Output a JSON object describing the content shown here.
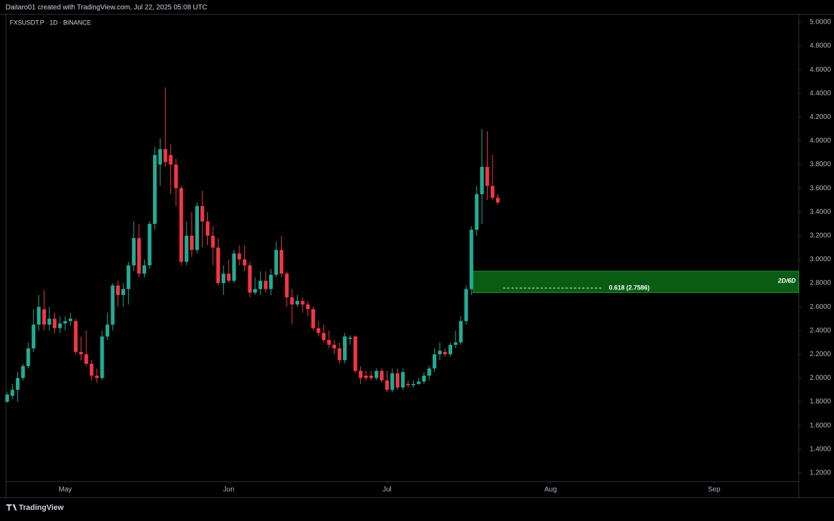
{
  "header": {
    "text": "Daitaro01 created with TradingView.com, Jul 22, 2025 05:08 UTC"
  },
  "footer": {
    "brand": "TradingView"
  },
  "chart_data": {
    "type": "candlestick",
    "title": "FXSUSDT.P · 1D · BINANCE",
    "up_color": "#22ab94",
    "down_color": "#f23645",
    "open": [
      1.8,
      1.85,
      1.9,
      2.0,
      2.1,
      2.25,
      2.45,
      2.58,
      2.45,
      2.5,
      2.42,
      2.46,
      2.48,
      2.48,
      2.22,
      2.2,
      2.12,
      2.02,
      2.0,
      2.35,
      2.45,
      2.78,
      2.7,
      2.75,
      2.95,
      3.18,
      2.88,
      2.95,
      3.3,
      3.8,
      3.93,
      3.88,
      3.8,
      3.6,
      2.98,
      3.2,
      3.08,
      3.45,
      3.32,
      3.2,
      3.1,
      2.8,
      2.88,
      2.82,
      3.05,
      3.0,
      2.95,
      2.72,
      2.75,
      2.82,
      2.75,
      2.87,
      3.08,
      2.88,
      2.68,
      2.62,
      2.65,
      2.62,
      2.58,
      2.42,
      2.38,
      2.32,
      2.28,
      2.25,
      2.15,
      2.33,
      2.35,
      2.06,
      2.02,
      2.02,
      2.0,
      2.06,
      1.98,
      1.9,
      2.04,
      1.92,
      1.95,
      1.94,
      1.95,
      1.97,
      2.02,
      2.08,
      2.2,
      2.22,
      2.2,
      2.28,
      2.3,
      2.48,
      2.75,
      3.25,
      3.55,
      3.78,
      3.62,
      3.52
    ],
    "high": [
      1.88,
      1.95,
      2.05,
      2.12,
      2.3,
      2.58,
      2.7,
      2.74,
      2.6,
      2.55,
      2.52,
      2.52,
      2.55,
      2.5,
      2.35,
      2.4,
      2.15,
      2.08,
      2.4,
      2.55,
      2.8,
      2.82,
      2.8,
      2.98,
      3.32,
      3.3,
      3.0,
      3.32,
      3.95,
      4.02,
      4.45,
      3.97,
      3.85,
      3.62,
      3.32,
      3.4,
      3.48,
      3.58,
      3.4,
      3.28,
      3.18,
      2.95,
      3.0,
      3.08,
      3.12,
      3.12,
      2.98,
      2.85,
      2.9,
      2.9,
      2.92,
      3.15,
      3.2,
      2.9,
      2.75,
      2.7,
      2.68,
      2.65,
      2.6,
      2.48,
      2.45,
      2.4,
      2.32,
      2.3,
      2.38,
      2.36,
      2.36,
      2.1,
      2.06,
      2.06,
      2.08,
      2.08,
      2.06,
      2.08,
      2.08,
      2.08,
      1.98,
      1.98,
      2.0,
      2.05,
      2.1,
      2.25,
      2.3,
      2.25,
      2.3,
      2.4,
      2.52,
      2.78,
      3.28,
      3.62,
      4.1,
      4.08,
      3.88,
      3.55
    ],
    "low": [
      1.79,
      1.82,
      1.8,
      1.98,
      2.08,
      2.22,
      2.4,
      2.4,
      2.4,
      2.38,
      2.38,
      2.4,
      2.44,
      2.2,
      2.15,
      2.1,
      1.98,
      1.96,
      1.98,
      2.32,
      2.4,
      2.6,
      2.6,
      2.62,
      2.9,
      2.85,
      2.85,
      2.92,
      3.25,
      3.62,
      3.78,
      3.55,
      3.45,
      2.95,
      2.95,
      3.02,
      3.05,
      3.1,
      3.12,
      2.95,
      2.78,
      2.7,
      2.8,
      2.8,
      2.95,
      2.9,
      2.68,
      2.7,
      2.7,
      2.72,
      2.7,
      2.85,
      2.85,
      2.6,
      2.45,
      2.6,
      2.55,
      2.52,
      2.4,
      2.35,
      2.3,
      2.25,
      2.2,
      2.12,
      2.12,
      2.28,
      2.04,
      1.95,
      1.98,
      1.98,
      1.98,
      1.96,
      1.88,
      1.88,
      1.9,
      1.9,
      1.92,
      1.92,
      1.94,
      1.95,
      1.98,
      2.05,
      2.15,
      2.18,
      2.18,
      2.25,
      2.28,
      2.45,
      2.7,
      3.2,
      3.3,
      3.5,
      3.5,
      3.46
    ],
    "close": [
      1.86,
      1.9,
      2.0,
      2.1,
      2.25,
      2.45,
      2.6,
      2.45,
      2.5,
      2.42,
      2.46,
      2.48,
      2.5,
      2.22,
      2.2,
      2.12,
      2.02,
      2.0,
      2.35,
      2.45,
      2.78,
      2.7,
      2.75,
      2.95,
      3.18,
      2.88,
      2.95,
      3.3,
      3.88,
      3.93,
      3.82,
      3.8,
      3.6,
      2.98,
      3.2,
      3.08,
      3.45,
      3.32,
      3.2,
      3.1,
      2.8,
      2.88,
      2.82,
      3.05,
      3.0,
      2.95,
      2.72,
      2.75,
      2.82,
      2.75,
      2.87,
      3.08,
      2.88,
      2.68,
      2.62,
      2.65,
      2.62,
      2.58,
      2.42,
      2.38,
      2.32,
      2.28,
      2.25,
      2.15,
      2.35,
      2.34,
      2.06,
      2.0,
      2.0,
      2.0,
      2.06,
      1.98,
      1.9,
      2.04,
      1.92,
      2.05,
      1.94,
      1.95,
      1.97,
      2.02,
      2.08,
      2.2,
      2.23,
      2.2,
      2.28,
      2.3,
      2.48,
      2.75,
      3.25,
      3.55,
      3.78,
      3.62,
      3.52,
      3.48
    ],
    "xlim": [
      -0.3,
      150
    ],
    "xticks": [
      {
        "value": 11,
        "label": "May"
      },
      {
        "value": 42,
        "label": "Jun"
      },
      {
        "value": 72,
        "label": "Jul"
      },
      {
        "value": 103,
        "label": "Aug"
      },
      {
        "value": 134,
        "label": "Sep"
      }
    ],
    "ylim": [
      1.1285,
      5.07
    ],
    "yticks": [
      {
        "value": 5.0,
        "label": "5.0000"
      },
      {
        "value": 4.8,
        "label": "4.8000"
      },
      {
        "value": 4.6,
        "label": "4.6000"
      },
      {
        "value": 4.4,
        "label": "4.4000"
      },
      {
        "value": 4.2,
        "label": "4.2000"
      },
      {
        "value": 4.0,
        "label": "4.0000"
      },
      {
        "value": 3.8,
        "label": "3.8000"
      },
      {
        "value": 3.6,
        "label": "3.6000"
      },
      {
        "value": 3.4,
        "label": "3.4000"
      },
      {
        "value": 3.2,
        "label": "3.2000"
      },
      {
        "value": 3.0,
        "label": "3.0000"
      },
      {
        "value": 2.8,
        "label": "2.8000"
      },
      {
        "value": 2.6,
        "label": "2.6000"
      },
      {
        "value": 2.4,
        "label": "2.4000"
      },
      {
        "value": 2.2,
        "label": "2.2000"
      },
      {
        "value": 2.0,
        "label": "2.0000"
      },
      {
        "value": 1.8,
        "label": "1.8000"
      },
      {
        "value": 1.6,
        "label": "1.6000"
      },
      {
        "value": 1.4,
        "label": "1.4000"
      },
      {
        "value": 1.2,
        "label": "1.2000"
      }
    ],
    "zone": {
      "start": 88.3,
      "top": 2.9,
      "bottom": 2.72,
      "label": "2D/6D",
      "color": "#0a5c14"
    },
    "level": {
      "value": 2.7586,
      "label": "0.618 (2.7586)",
      "start": 94,
      "end": 113
    }
  }
}
